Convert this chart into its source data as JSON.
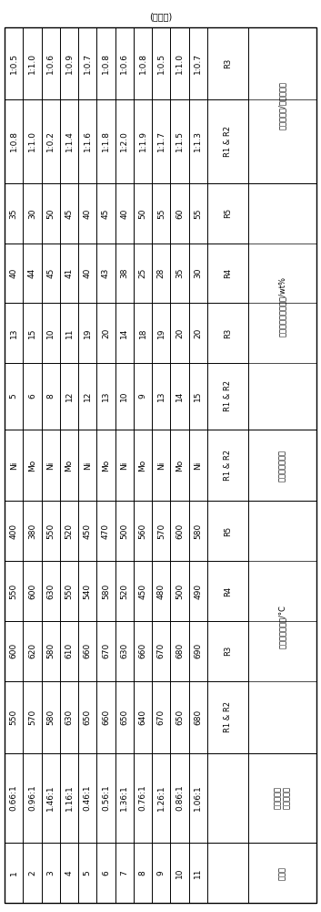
{
  "title": "(接上表)",
  "group_headers": [
    {
      "label": "实施例",
      "cols": [
        0
      ],
      "has_subheader": false
    },
    {
      "label": "合成气与水\n蒸气摩尔比",
      "cols": [
        1
      ],
      "has_subheader": false
    },
    {
      "label": "反应器出口温度/°C",
      "cols": [
        2,
        3,
        4,
        5
      ],
      "has_subheader": true
    },
    {
      "label": "催化剂活性组分",
      "cols": [
        6
      ],
      "has_subheader": true
    },
    {
      "label": "催化剂活性组分含量/wt%",
      "cols": [
        7,
        8,
        9,
        10
      ],
      "has_subheader": true
    },
    {
      "label": "催化剂质量/石英砂质量",
      "cols": [
        11,
        12
      ],
      "has_subheader": true
    }
  ],
  "sub_headers": [
    "",
    "",
    "R1 & R2",
    "R3",
    "R4",
    "R5",
    "R1 & R2",
    "R1 & R2",
    "R3",
    "R4",
    "R5",
    "R1 & R2",
    "R3"
  ],
  "col_widths_rel": [
    1.0,
    1.5,
    1.2,
    1.0,
    1.0,
    1.0,
    1.2,
    1.1,
    1.0,
    1.0,
    1.0,
    1.4,
    1.2
  ],
  "rows": [
    [
      "1",
      "0.66:1",
      "550",
      "600",
      "550",
      "400",
      "Ni",
      "5",
      "13",
      "40",
      "35",
      "1:0.8",
      "1:0.5"
    ],
    [
      "2",
      "0.96:1",
      "570",
      "620",
      "600",
      "380",
      "Mo",
      "6",
      "15",
      "44",
      "30",
      "1:1.0",
      "1:1.0"
    ],
    [
      "3",
      "1.46:1",
      "580",
      "580",
      "630",
      "550",
      "Ni",
      "8",
      "10",
      "45",
      "50",
      "1:0.2",
      "1:0.6"
    ],
    [
      "4",
      "1.16:1",
      "630",
      "610",
      "550",
      "520",
      "Mo",
      "12",
      "11",
      "41",
      "45",
      "1:1.4",
      "1:0.9"
    ],
    [
      "5",
      "0.46:1",
      "650",
      "660",
      "540",
      "450",
      "Ni",
      "12",
      "19",
      "40",
      "40",
      "1:1.6",
      "1:0.7"
    ],
    [
      "6",
      "0.56:1",
      "660",
      "670",
      "580",
      "470",
      "Mo",
      "13",
      "20",
      "43",
      "45",
      "1:1.8",
      "1:0.8"
    ],
    [
      "7",
      "1.36:1",
      "650",
      "630",
      "520",
      "500",
      "Ni",
      "10",
      "14",
      "38",
      "40",
      "1:2.0",
      "1:0.6"
    ],
    [
      "8",
      "0.76:1",
      "640",
      "660",
      "450",
      "560",
      "Mo",
      "9",
      "18",
      "25",
      "50",
      "1:1.9",
      "1:0.8"
    ],
    [
      "9",
      "1.26:1",
      "670",
      "670",
      "480",
      "570",
      "Ni",
      "13",
      "19",
      "28",
      "55",
      "1:1.7",
      "1:0.5"
    ],
    [
      "10",
      "0.86:1",
      "650",
      "680",
      "500",
      "600",
      "Mo",
      "14",
      "20",
      "35",
      "60",
      "1:1.5",
      "1:1.0"
    ],
    [
      "11",
      "1.06:1",
      "680",
      "690",
      "490",
      "580",
      "Ni",
      "15",
      "20",
      "30",
      "55",
      "1:1.3",
      "1:0.7"
    ]
  ],
  "n_cols": 13,
  "n_rows": 11,
  "bg_color": "#ffffff",
  "line_color": "#000000",
  "text_color": "#000000",
  "title_fontsize": 7,
  "header_fontsize": 6,
  "subheader_fontsize": 6,
  "data_fontsize": 6.5
}
